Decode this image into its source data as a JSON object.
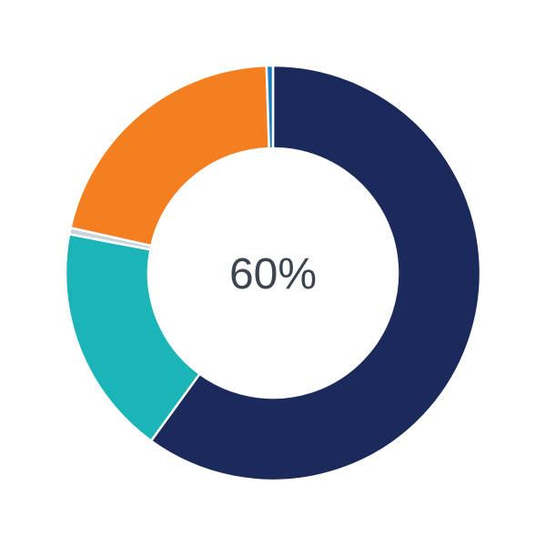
{
  "chart_data": {
    "type": "pie",
    "style": "donut",
    "center_label": "60%",
    "direction": "clockwise-from-top",
    "slices": [
      {
        "value": 60,
        "color": "#1b2a5a"
      },
      {
        "value": 18,
        "color": "#1bb5b8"
      },
      {
        "value": 0.5,
        "color": "#c9d3dc"
      },
      {
        "value": 21,
        "color": "#f47f20"
      },
      {
        "value": 0.5,
        "color": "#1a7dc0"
      }
    ]
  }
}
